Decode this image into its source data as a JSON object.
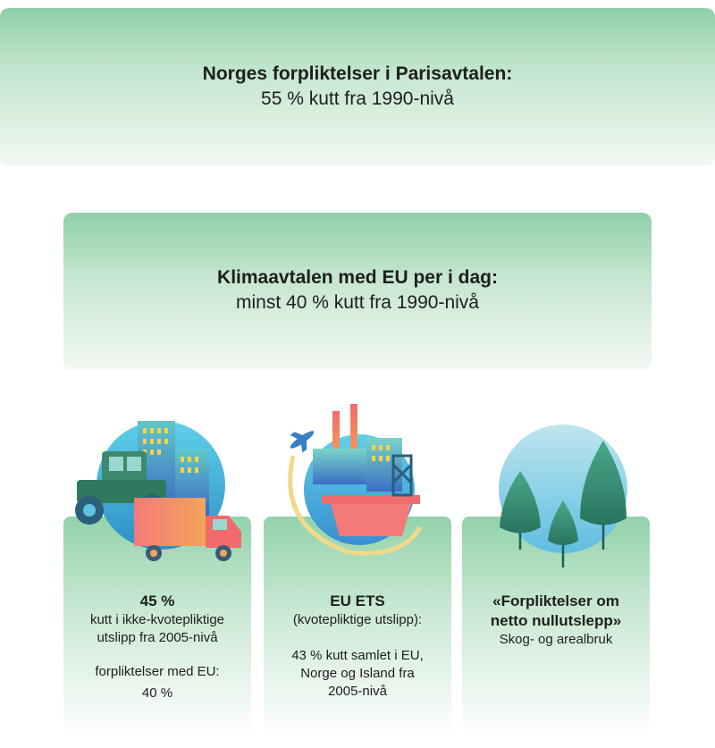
{
  "header": {
    "title": "Norges forpliktelser i Parisavtalen:",
    "subtitle": "55 % kutt fra 1990-nivå"
  },
  "eu_agreement": {
    "title": "Klimaavtalen med EU per i dag:",
    "subtitle": "minst 40 % kutt fra 1990-nivå"
  },
  "cards": [
    {
      "icon": "city-farm-truck-icon",
      "headline": "45 %",
      "line1": "kutt i ikke-kvotepliktige",
      "line2": "utslipp fra 2005-nivå",
      "line3": "forpliktelser med EU:",
      "line4": "40 %"
    },
    {
      "icon": "industry-airplane-oil-platform-icon",
      "headline": "EU ETS",
      "line1": "(kvotepliktige utslipp):",
      "line2": "43 % kutt samlet i EU,",
      "line3": "Norge og Island fra",
      "line4": "2005-nivå"
    },
    {
      "icon": "forest-trees-icon",
      "headline1": "«Forpliktelser om",
      "headline2": "netto nullutslepp»",
      "line1": "Skog- og arealbruk"
    }
  ],
  "colors": {
    "box_gradient_top": "#8fcfa8",
    "circle_blue": "#5fc3e4",
    "truck_red": "#f26b6b",
    "tractor_green": "#3b8a6e",
    "tree_dark": "#2e7d66"
  }
}
